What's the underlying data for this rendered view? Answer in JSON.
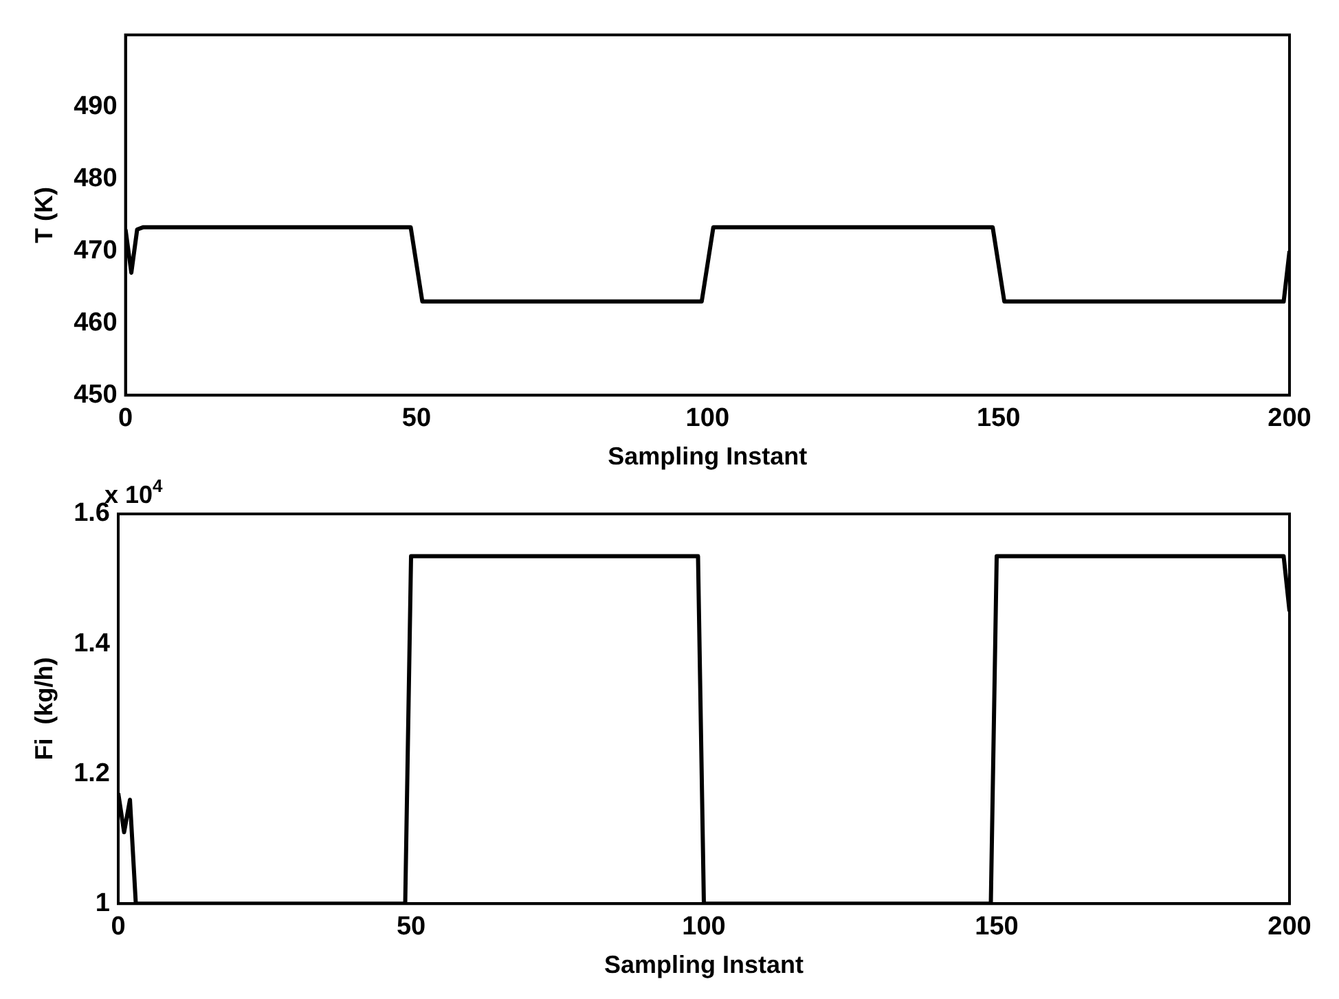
{
  "chart_data": [
    {
      "type": "line",
      "xlabel": "Sampling Instant",
      "ylabel": "T (K)",
      "xlim": [
        0,
        200
      ],
      "xticks": [
        0,
        50,
        100,
        150,
        200
      ],
      "ylim": [
        450,
        500
      ],
      "yticks": [
        450,
        460,
        470,
        480,
        490
      ],
      "series": [
        {
          "color": "#000000",
          "x": [
            0,
            1,
            2,
            3,
            49,
            51,
            99,
            101,
            149,
            151,
            199,
            200
          ],
          "values": [
            473,
            467,
            473,
            473.3,
            473.3,
            463,
            463,
            473.3,
            473.3,
            463,
            463,
            470
          ]
        }
      ]
    },
    {
      "type": "line",
      "xlabel": "Sampling Instant",
      "ylabel": "Fi  (kg/h)",
      "annotations": [
        "x 10$^{4}$"
      ],
      "xlim": [
        0,
        200
      ],
      "xticks": [
        0,
        50,
        100,
        150,
        200
      ],
      "ylim": [
        1,
        1.6
      ],
      "yticks": [
        1,
        1.2,
        1.4,
        1.6
      ],
      "series": [
        {
          "color": "#000000",
          "x": [
            0,
            1,
            2,
            3,
            49,
            50,
            99,
            100,
            149,
            150,
            199,
            200
          ],
          "values": [
            1.17,
            1.11,
            1.16,
            1,
            1,
            1.535,
            1.535,
            1,
            1,
            1.535,
            1.535,
            1.45
          ]
        }
      ]
    }
  ]
}
